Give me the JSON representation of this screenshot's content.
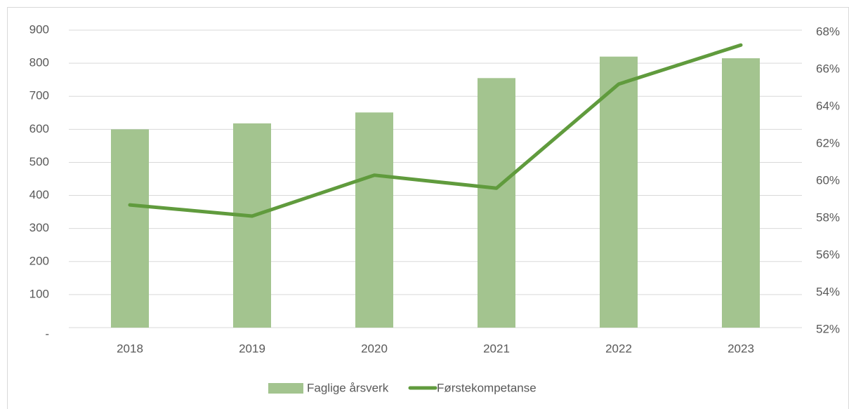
{
  "chart_data": {
    "type": "bar-line",
    "categories": [
      "2018",
      "2019",
      "2020",
      "2021",
      "2022",
      "2023"
    ],
    "series": [
      {
        "name": "Faglige årsverk",
        "type": "bar",
        "color": "#a3c48f",
        "values": [
          600,
          618,
          651,
          755,
          820,
          815
        ]
      },
      {
        "name": "Førstekompetanse",
        "type": "line",
        "axis": "y2",
        "color": "#609b3d",
        "values": [
          58.6,
          58.0,
          60.2,
          59.5,
          65.1,
          67.2
        ]
      }
    ],
    "ylim": [
      0,
      900
    ],
    "yticks": [
      {
        "value": 0,
        "label": "-"
      },
      100,
      200,
      300,
      400,
      500,
      600,
      700,
      800,
      900
    ],
    "y2lim": [
      52,
      68
    ],
    "y2ticks": [
      {
        "value": 52,
        "label": "52%"
      },
      {
        "value": 54,
        "label": "54%"
      },
      {
        "value": 56,
        "label": "56%"
      },
      {
        "value": 58,
        "label": "58%"
      },
      {
        "value": 60,
        "label": "60%"
      },
      {
        "value": 62,
        "label": "62%"
      },
      {
        "value": 64,
        "label": "64%"
      },
      {
        "value": 66,
        "label": "66%"
      },
      {
        "value": 68,
        "label": "68%"
      }
    ],
    "grid": true,
    "legend": "bottom"
  }
}
